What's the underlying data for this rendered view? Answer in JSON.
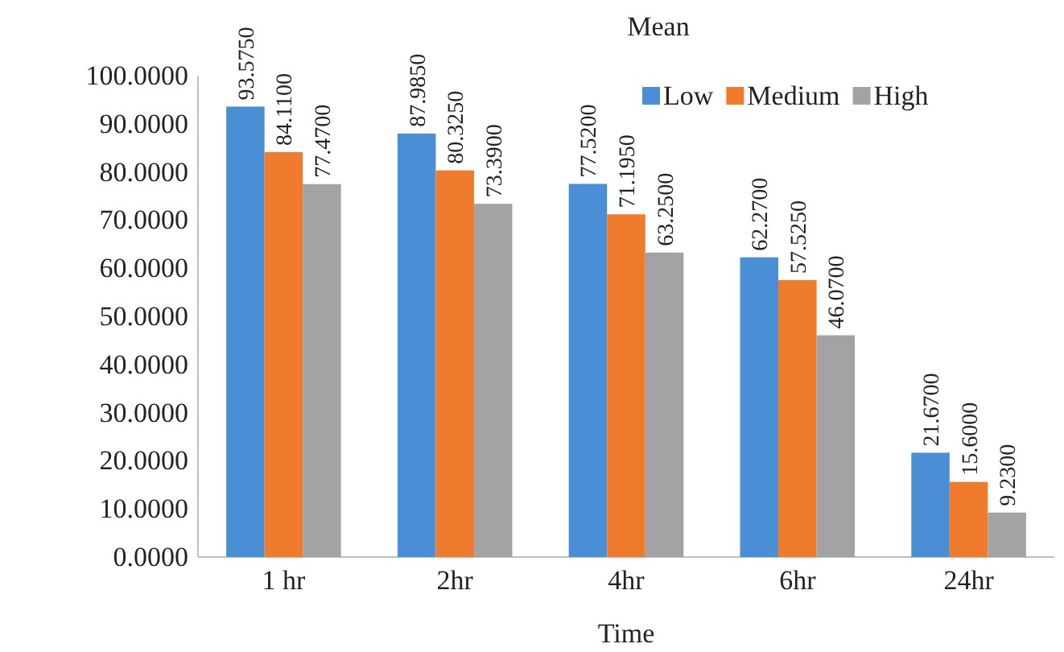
{
  "chart_data": {
    "type": "bar",
    "title": "Mean",
    "xlabel": "Time",
    "categories": [
      "1 hr",
      "2hr",
      "4hr",
      "6hr",
      "24hr"
    ],
    "series": [
      {
        "name": "Low",
        "color": "#4a8fd6",
        "values": [
          93.575,
          87.985,
          77.52,
          62.27,
          21.67
        ],
        "value_labels": [
          "93.5750",
          "87.9850",
          "77.5200",
          "62.2700",
          "21.6700"
        ]
      },
      {
        "name": "Medium",
        "color": "#f07b2c",
        "values": [
          84.11,
          80.325,
          71.195,
          57.525,
          15.6
        ],
        "value_labels": [
          "84.1100",
          "80.3250",
          "71.1950",
          "57.5250",
          "15.6000"
        ]
      },
      {
        "name": "High",
        "color": "#a3a3a3",
        "values": [
          77.47,
          73.39,
          63.25,
          46.07,
          9.23
        ],
        "value_labels": [
          "77.4700",
          "73.3900",
          "63.2500",
          "46.0700",
          "9.2300"
        ]
      }
    ],
    "ylim": [
      0,
      100
    ],
    "yticks": [
      {
        "value": 0,
        "label": "0.0000"
      },
      {
        "value": 10,
        "label": "10.0000"
      },
      {
        "value": 20,
        "label": "20.0000"
      },
      {
        "value": 30,
        "label": "30.0000"
      },
      {
        "value": 40,
        "label": "40.0000"
      },
      {
        "value": 50,
        "label": "50.0000"
      },
      {
        "value": 60,
        "label": "60.0000"
      },
      {
        "value": 70,
        "label": "70.0000"
      },
      {
        "value": 80,
        "label": "80.0000"
      },
      {
        "value": 90,
        "label": "90.0000"
      },
      {
        "value": 100,
        "label": "100.0000"
      }
    ],
    "legend": "top right",
    "grid": false
  }
}
